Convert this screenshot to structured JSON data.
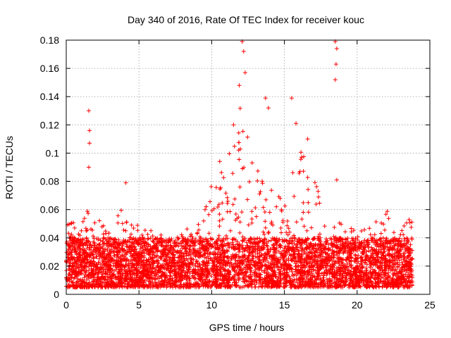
{
  "chart_data": {
    "type": "scatter",
    "title": "Day 340 of 2016, Rate Of TEC Index for receiver kouc",
    "xlabel": "GPS time / hours",
    "ylabel": "ROTI / TECUs",
    "xlim": [
      0,
      25
    ],
    "ylim": [
      0,
      0.18
    ],
    "xticks": [
      0,
      5,
      10,
      15,
      20,
      25
    ],
    "yticks": [
      0,
      0.02,
      0.04,
      0.06,
      0.08,
      0.1,
      0.12,
      0.14,
      0.16,
      0.18
    ],
    "xtick_labels": [
      "0",
      "5",
      "10",
      "15",
      "20",
      "25"
    ],
    "ytick_labels": [
      "0",
      "0.02",
      "0.04",
      "0.06",
      "0.08",
      "0.1",
      "0.12",
      "0.14",
      "0.16",
      "0.18"
    ],
    "grid": true,
    "marker": "+",
    "color": "#ff0000",
    "x_data_range": [
      0,
      23.8
    ],
    "typical_band": [
      0.005,
      0.04
    ],
    "envelope": [
      {
        "x": 0,
        "max": 0.06
      },
      {
        "x": 1,
        "max": 0.045
      },
      {
        "x": 1.5,
        "max": 0.068
      },
      {
        "x": 2,
        "max": 0.055
      },
      {
        "x": 3,
        "max": 0.045
      },
      {
        "x": 4,
        "max": 0.065
      },
      {
        "x": 5,
        "max": 0.05
      },
      {
        "x": 6,
        "max": 0.045
      },
      {
        "x": 7,
        "max": 0.04
      },
      {
        "x": 8,
        "max": 0.045
      },
      {
        "x": 9,
        "max": 0.05
      },
      {
        "x": 10,
        "max": 0.088
      },
      {
        "x": 11,
        "max": 0.1
      },
      {
        "x": 12,
        "max": 0.155
      },
      {
        "x": 13,
        "max": 0.095
      },
      {
        "x": 14,
        "max": 0.085
      },
      {
        "x": 15,
        "max": 0.065
      },
      {
        "x": 16,
        "max": 0.11
      },
      {
        "x": 17,
        "max": 0.085
      },
      {
        "x": 18,
        "max": 0.055
      },
      {
        "x": 19,
        "max": 0.05
      },
      {
        "x": 20,
        "max": 0.045
      },
      {
        "x": 21,
        "max": 0.05
      },
      {
        "x": 22,
        "max": 0.06
      },
      {
        "x": 23,
        "max": 0.045
      },
      {
        "x": 23.8,
        "max": 0.058
      }
    ],
    "outliers": [
      {
        "x": 1.55,
        "y": 0.13
      },
      {
        "x": 1.6,
        "y": 0.116
      },
      {
        "x": 1.6,
        "y": 0.107
      },
      {
        "x": 1.55,
        "y": 0.09
      },
      {
        "x": 4.1,
        "y": 0.079
      },
      {
        "x": 12.1,
        "y": 0.179
      },
      {
        "x": 12.2,
        "y": 0.172
      },
      {
        "x": 12.3,
        "y": 0.157
      },
      {
        "x": 11.9,
        "y": 0.148
      },
      {
        "x": 13.7,
        "y": 0.139
      },
      {
        "x": 13.9,
        "y": 0.132
      },
      {
        "x": 15.5,
        "y": 0.139
      },
      {
        "x": 15.8,
        "y": 0.121
      },
      {
        "x": 18.5,
        "y": 0.179
      },
      {
        "x": 18.6,
        "y": 0.174
      },
      {
        "x": 18.55,
        "y": 0.163
      },
      {
        "x": 18.5,
        "y": 0.152
      },
      {
        "x": 18.6,
        "y": 0.081
      },
      {
        "x": 16.6,
        "y": 0.11
      },
      {
        "x": 11.5,
        "y": 0.12
      }
    ]
  }
}
